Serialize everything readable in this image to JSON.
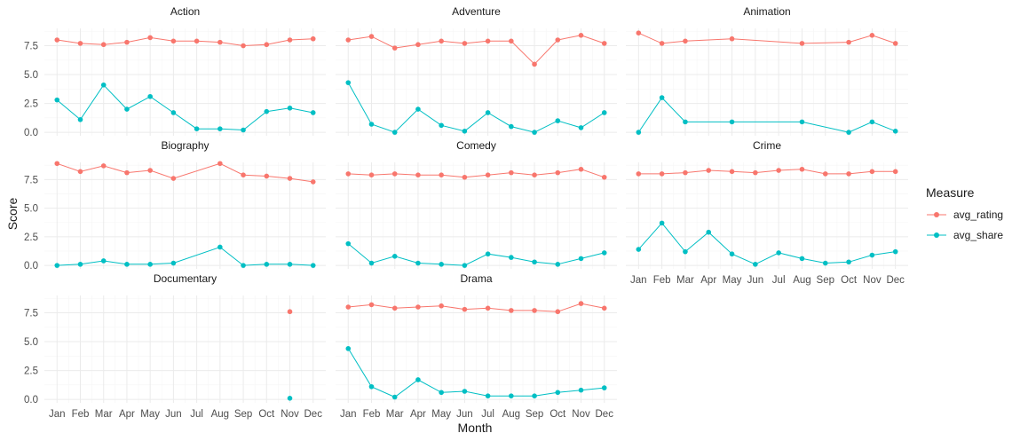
{
  "chart_data": {
    "type": "line",
    "xlabel": "Month",
    "ylabel": "Score",
    "categories": [
      "Jan",
      "Feb",
      "Mar",
      "Apr",
      "May",
      "Jun",
      "Jul",
      "Aug",
      "Sep",
      "Oct",
      "Nov",
      "Dec"
    ],
    "y_ticks": [
      0.0,
      2.5,
      5.0,
      7.5
    ],
    "y_tick_labels": [
      "0.0",
      "2.5",
      "5.0",
      "7.5"
    ],
    "ylim": [
      -0.3,
      9.0
    ],
    "grid": true,
    "facet_layout": "3 columns x 3 rows",
    "legend": {
      "title": "Measure",
      "position": "right",
      "entries": [
        "avg_rating",
        "avg_share"
      ]
    },
    "colors": {
      "avg_rating": "#F8766D",
      "avg_share": "#00BFC4"
    },
    "panels": [
      {
        "name": "Action",
        "series": [
          {
            "name": "avg_rating",
            "values": [
              8.0,
              7.7,
              7.6,
              7.8,
              8.2,
              7.9,
              7.9,
              7.8,
              7.5,
              7.6,
              8.0,
              8.1
            ]
          },
          {
            "name": "avg_share",
            "values": [
              2.8,
              1.1,
              4.1,
              2.0,
              3.1,
              1.7,
              0.3,
              0.3,
              0.2,
              1.8,
              2.1,
              1.7
            ]
          }
        ]
      },
      {
        "name": "Adventure",
        "series": [
          {
            "name": "avg_rating",
            "values": [
              8.0,
              8.3,
              7.3,
              7.6,
              7.9,
              7.7,
              7.9,
              7.9,
              5.9,
              8.0,
              8.4,
              7.7
            ]
          },
          {
            "name": "avg_share",
            "values": [
              4.3,
              0.7,
              0.0,
              2.0,
              0.6,
              0.1,
              1.7,
              0.5,
              0.0,
              1.0,
              0.4,
              1.7
            ]
          }
        ]
      },
      {
        "name": "Animation",
        "series": [
          {
            "name": "avg_rating",
            "values": [
              8.6,
              7.7,
              7.9,
              null,
              8.1,
              null,
              null,
              7.7,
              null,
              7.8,
              8.4,
              7.7
            ]
          },
          {
            "name": "avg_share",
            "values": [
              0.0,
              3.0,
              0.9,
              null,
              0.9,
              null,
              null,
              0.9,
              null,
              0.0,
              0.9,
              0.1
            ]
          }
        ]
      },
      {
        "name": "Biography",
        "series": [
          {
            "name": "avg_rating",
            "values": [
              8.9,
              8.2,
              8.7,
              8.1,
              8.3,
              7.6,
              null,
              8.9,
              7.9,
              7.8,
              7.6,
              7.3
            ]
          },
          {
            "name": "avg_share",
            "values": [
              0.0,
              0.1,
              0.4,
              0.1,
              0.1,
              0.2,
              null,
              1.6,
              0.0,
              0.1,
              0.1,
              0.0
            ]
          }
        ]
      },
      {
        "name": "Comedy",
        "series": [
          {
            "name": "avg_rating",
            "values": [
              8.0,
              7.9,
              8.0,
              7.9,
              7.9,
              7.7,
              7.9,
              8.1,
              7.9,
              8.1,
              8.4,
              7.7
            ]
          },
          {
            "name": "avg_share",
            "values": [
              1.9,
              0.2,
              0.8,
              0.2,
              0.1,
              0.0,
              1.0,
              0.7,
              0.3,
              0.1,
              0.6,
              1.1
            ]
          }
        ]
      },
      {
        "name": "Crime",
        "series": [
          {
            "name": "avg_rating",
            "values": [
              8.0,
              8.0,
              8.1,
              8.3,
              8.2,
              8.1,
              8.3,
              8.4,
              8.0,
              8.0,
              8.2,
              8.2
            ]
          },
          {
            "name": "avg_share",
            "values": [
              1.4,
              3.7,
              1.2,
              2.9,
              1.0,
              0.1,
              1.1,
              0.6,
              0.2,
              0.3,
              0.9,
              1.2
            ]
          }
        ]
      },
      {
        "name": "Documentary",
        "series": [
          {
            "name": "avg_rating",
            "values": [
              null,
              null,
              null,
              null,
              null,
              null,
              null,
              null,
              null,
              null,
              7.6,
              null
            ]
          },
          {
            "name": "avg_share",
            "values": [
              null,
              null,
              null,
              null,
              null,
              null,
              null,
              null,
              null,
              null,
              0.1,
              null
            ]
          }
        ]
      },
      {
        "name": "Drama",
        "series": [
          {
            "name": "avg_rating",
            "values": [
              8.0,
              8.2,
              7.9,
              8.0,
              8.1,
              7.8,
              7.9,
              7.7,
              7.7,
              7.6,
              8.3,
              7.9
            ]
          },
          {
            "name": "avg_share",
            "values": [
              4.4,
              1.1,
              0.2,
              1.7,
              0.6,
              0.7,
              0.3,
              0.3,
              0.3,
              0.6,
              0.8,
              1.0
            ]
          }
        ]
      }
    ]
  }
}
